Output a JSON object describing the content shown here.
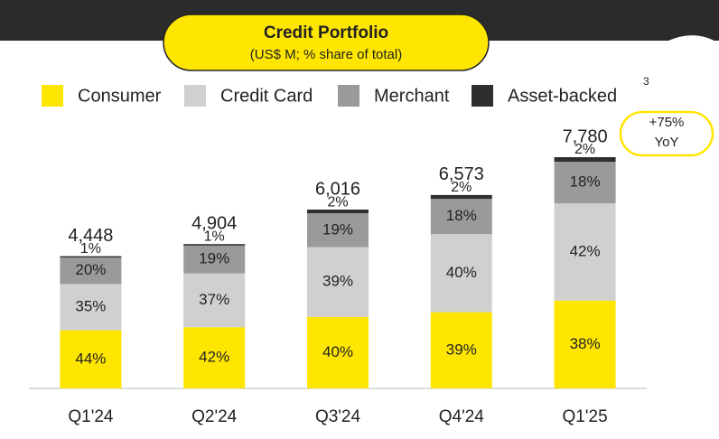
{
  "chart_data": {
    "type": "stacked-bar",
    "title": "Credit Portfolio",
    "subtitle": "(US$ M; % share of total)",
    "legend_note": "3",
    "categories": [
      "Q1'24",
      "Q2'24",
      "Q3'24",
      "Q4'24",
      "Q1'25"
    ],
    "series": [
      {
        "name": "Consumer",
        "color": "#ffe600",
        "values": [
          44,
          42,
          40,
          39,
          38
        ],
        "value_labels": [
          "44%",
          "42%",
          "40%",
          "39%",
          "38%"
        ]
      },
      {
        "name": "Credit Card",
        "color": "#d0d0d0",
        "values": [
          35,
          37,
          39,
          40,
          42
        ],
        "value_labels": [
          "35%",
          "37%",
          "39%",
          "40%",
          "42%"
        ]
      },
      {
        "name": "Merchant",
        "color": "#9a9a9a",
        "values": [
          20,
          19,
          19,
          18,
          18
        ],
        "value_labels": [
          "20%",
          "19%",
          "19%",
          "18%",
          "18%"
        ]
      },
      {
        "name": "Asset-backed",
        "color": "#2e2e2e",
        "values": [
          1,
          1,
          2,
          2,
          2
        ],
        "value_labels": [
          "1%",
          "1%",
          "2%",
          "2%",
          "2%"
        ]
      }
    ],
    "totals": {
      "values": [
        4448,
        4904,
        6016,
        6573,
        7780
      ],
      "value_labels": [
        "4,448",
        "4,904",
        "6,016",
        "6,573",
        "7,780"
      ]
    },
    "annotation": [
      "+75%",
      "YoY"
    ]
  }
}
